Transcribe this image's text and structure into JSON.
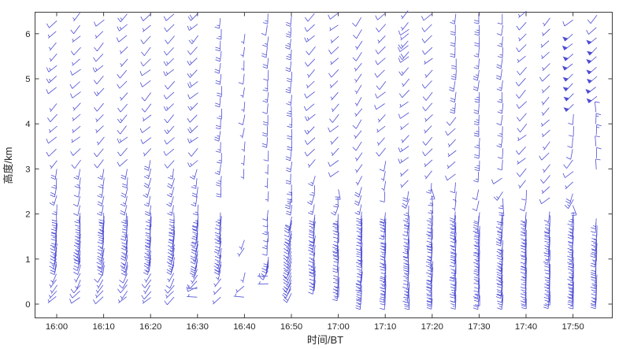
{
  "figure": {
    "background": "#ffffff"
  },
  "axes": {
    "frame_color": "#3c3c3c",
    "tick_color": "#3c3c3c",
    "tick_label_color": "#262626",
    "axis_title_color": "#262626",
    "x_tick_labels": [
      "16:00",
      "16:10",
      "16:20",
      "16:30",
      "16:40",
      "16:50",
      "17:00",
      "17:10",
      "17:20",
      "17:30",
      "17:40",
      "17:50"
    ],
    "y_tick_labels": [
      "0",
      "1",
      "2",
      "3",
      "4",
      "5",
      "6"
    ]
  },
  "chart_data": {
    "type": "scatter",
    "subtype": "wind-barb-time-height-profile",
    "title": "",
    "xlabel": "时间/BT",
    "ylabel": "高度/km",
    "x_unit": "time (BT)",
    "y_unit": "km",
    "time_start": "16:00",
    "time_end": "17:55",
    "x_tick_interval_minutes": 10,
    "column_interval_minutes": 5,
    "xlim_minutes_from_start": [
      -4.6,
      118.4
    ],
    "ylim": [
      -0.3,
      6.5
    ],
    "y_ticks_km": [
      0,
      1,
      2,
      3,
      4,
      5,
      6
    ],
    "grid": "off",
    "legend": "none",
    "barb_color": "#4444d2",
    "speed_units": "kt",
    "barb_convention": "staff points upwind from station; half barb = 5 kt, full barb = 10 kt, pennant = 50 kt",
    "presets": {
      "low": {
        "h0": 0.16,
        "h1": 0.8,
        "step": 0.13,
        "dir": 228,
        "dir2": 198,
        "djit": 8,
        "s0": 5,
        "s1": 10
      },
      "comb": {
        "h0": 0.87,
        "h1": 2.06,
        "step": 0.077,
        "dir": 193,
        "dir2": 181,
        "djit": 4,
        "s0": 10,
        "s1": 20
      },
      "combF": {
        "h0": 0.12,
        "h1": 2.06,
        "step": 0.077,
        "dir": 183,
        "djit": 3,
        "s0": 10,
        "s1": 20
      },
      "trans": {
        "h0": 2.2,
        "h1": 3.0,
        "step": 0.2,
        "dir": 190,
        "djit": 8,
        "s0": 15,
        "s1": 20
      },
      "check": {
        "h0": 3.2,
        "h1": 6.5,
        "step": 0.25,
        "dir": 226,
        "djit": 10,
        "s0": 5,
        "s1": 10
      },
      "vert": {
        "h0": 2.7,
        "h1": 6.5,
        "step": 0.25,
        "dir": 184,
        "djit": 5,
        "s0": 15,
        "s1": 25
      },
      "lhook": {
        "h0": 3.0,
        "h1": 6.0,
        "step": 0.3,
        "dir": 187,
        "djit": 6,
        "s0": 5,
        "s1": 10
      },
      "flag": {
        "h0": 4.45,
        "h1": 6.1,
        "step": 0.22,
        "dir": 228,
        "djit": 6,
        "s0": 50,
        "s1": 50
      },
      "dash": {
        "h0": 0.16,
        "h1": 0.34,
        "step": 0.18,
        "dir": 272,
        "djit": 5,
        "s0": 5,
        "s1": 5
      }
    },
    "columns": [
      {
        "t": "16:00",
        "m": 0,
        "bands": [
          {
            "p": "low"
          },
          {
            "p": "comb"
          },
          {
            "p": "trans"
          },
          {
            "p": "check",
            "h1": 4.6
          },
          {
            "p": "check",
            "h0": 4.8,
            "h1": 5.3,
            "s0": 10,
            "s1": 20
          },
          {
            "p": "check",
            "h0": 5.55
          }
        ]
      },
      {
        "t": "16:05",
        "m": 5,
        "bands": [
          {
            "p": "low"
          },
          {
            "p": "comb"
          },
          {
            "p": "trans",
            "s0": 10,
            "s1": 15
          },
          {
            "p": "check"
          }
        ]
      },
      {
        "t": "16:10",
        "m": 10,
        "bands": [
          {
            "p": "low"
          },
          {
            "p": "comb"
          },
          {
            "p": "trans"
          },
          {
            "p": "check",
            "h1": 4.6
          },
          {
            "p": "check",
            "h0": 4.8,
            "h1": 5.3,
            "s0": 10,
            "s1": 20
          },
          {
            "p": "check",
            "h0": 5.55
          }
        ]
      },
      {
        "t": "16:15",
        "m": 15,
        "bands": [
          {
            "p": "low"
          },
          {
            "p": "comb"
          },
          {
            "p": "trans"
          },
          {
            "p": "check",
            "s1": 15
          }
        ]
      },
      {
        "t": "16:20",
        "m": 20,
        "bands": [
          {
            "p": "low"
          },
          {
            "p": "comb"
          },
          {
            "p": "trans",
            "h1": 3.2
          },
          {
            "p": "check",
            "h0": 3.45
          }
        ]
      },
      {
        "t": "16:25",
        "m": 25,
        "bands": [
          {
            "p": "low"
          },
          {
            "p": "comb",
            "dir": 196
          },
          {
            "p": "trans"
          },
          {
            "p": "check",
            "s0": 10,
            "s1": 15
          }
        ]
      },
      {
        "t": "16:30",
        "m": 30,
        "bands": [
          {
            "p": "dash"
          },
          {
            "p": "low",
            "h0": 0.38,
            "dir": 240
          },
          {
            "p": "comb",
            "dir": 197
          },
          {
            "p": "trans"
          },
          {
            "p": "check",
            "s0": 10,
            "s1": 20
          }
        ]
      },
      {
        "t": "16:35",
        "m": 35,
        "bands": [
          {
            "p": "low",
            "step": 0.2,
            "dir": 235
          },
          {
            "p": "comb"
          },
          {
            "p": "vert",
            "h0": 2.6
          }
        ]
      },
      {
        "t": "16:40",
        "m": 40,
        "bands": [
          {
            "p": "dash",
            "h1": 0.2
          },
          {
            "p": "low",
            "h0": 0.4,
            "h1": 0.72,
            "step": 0.3,
            "s1": 5
          },
          {
            "p": "check",
            "h0": 1.25,
            "h1": 1.42,
            "step": 0.17,
            "dir": 205,
            "s1": 5
          },
          {
            "p": "lhook",
            "h1": 6.2
          }
        ]
      },
      {
        "t": "16:45",
        "m": 45,
        "bands": [
          {
            "p": "dash",
            "h0": 0.45,
            "h1": 0.62,
            "step": 0.16
          },
          {
            "p": "comb",
            "h0": 0.75,
            "h1": 1.1,
            "dir": 206
          },
          {
            "p": "vert",
            "h0": 1.3,
            "h1": 2.1,
            "step": 0.16,
            "s0": 10,
            "s1": 15
          },
          {
            "p": "lhook",
            "h0": 2.5,
            "h1": 3.4
          },
          {
            "p": "vert",
            "h0": 3.7,
            "s0": 10,
            "s1": 20
          }
        ]
      },
      {
        "t": "16:50",
        "m": 50,
        "bands": [
          {
            "p": "combF",
            "h0": 0.25,
            "h1": 2.0,
            "dir": 206,
            "dir2": 194,
            "djit": 5
          },
          {
            "p": "vert",
            "h0": 2.2,
            "h1": 2.65,
            "step": 0.15
          },
          {
            "p": "vert",
            "h0": 2.9
          }
        ]
      },
      {
        "t": "16:55",
        "m": 55,
        "bands": [
          {
            "p": "combF",
            "h0": 0.45,
            "dir": 187
          },
          {
            "p": "trans",
            "step": 0.22
          },
          {
            "p": "check",
            "s1": 15
          }
        ]
      },
      {
        "t": "17:00",
        "m": 60,
        "bands": [
          {
            "p": "combF",
            "h0": 0.3
          },
          {
            "p": "trans",
            "h1": 2.7,
            "djit": 28,
            "s0": 10,
            "step": 0.17
          },
          {
            "p": "check",
            "h0": 2.95
          }
        ]
      },
      {
        "t": "17:05",
        "m": 65,
        "bands": [
          {
            "p": "combF",
            "h0": 0.5
          },
          {
            "p": "combF",
            "h1": 0.42,
            "step": 0.1,
            "s0": 25,
            "s1": 30
          },
          {
            "p": "trans",
            "h1": 2.6
          },
          {
            "p": "check",
            "h0": 2.85,
            "dir": 215
          }
        ]
      },
      {
        "t": "17:10",
        "m": 70,
        "bands": [
          {
            "p": "combF"
          },
          {
            "p": "lhook",
            "h0": 2.5,
            "h1": 3.2,
            "step": 0.23
          },
          {
            "p": "check",
            "h0": 3.45
          }
        ]
      },
      {
        "t": "17:15",
        "m": 75,
        "bands": [
          {
            "p": "combF"
          },
          {
            "p": "trans",
            "h1": 2.5,
            "step": 0.15,
            "djit": 25
          },
          {
            "p": "check",
            "h0": 2.75,
            "s1": 15
          },
          {
            "p": "check",
            "h0": 5.6,
            "h1": 6.2,
            "s0": 10,
            "s1": 20
          }
        ]
      },
      {
        "t": "17:20",
        "m": 80,
        "bands": [
          {
            "p": "combF"
          },
          {
            "p": "trans",
            "h0": 2.25,
            "h1": 2.7,
            "djit": 30,
            "s0": 10,
            "step": 0.15
          },
          {
            "p": "check",
            "h0": 2.95,
            "s1": 15
          }
        ]
      },
      {
        "t": "17:25",
        "m": 85,
        "bands": [
          {
            "p": "combF"
          },
          {
            "p": "lhook",
            "h0": 2.3,
            "h1": 2.7,
            "step": 0.2
          },
          {
            "p": "check",
            "h0": 2.9,
            "h1": 4.2
          },
          {
            "p": "vert",
            "h0": 4.45
          }
        ]
      },
      {
        "t": "17:30",
        "m": 90,
        "bands": [
          {
            "p": "combF"
          },
          {
            "p": "lhook",
            "h0": 2.3,
            "h1": 2.6,
            "step": 0.25
          },
          {
            "p": "vert",
            "h0": 2.95
          }
        ]
      },
      {
        "t": "17:35",
        "m": 95,
        "bands": [
          {
            "p": "combF",
            "dir": 186
          },
          {
            "p": "trans",
            "h1": 2.6,
            "djit": 30,
            "step": 0.15
          },
          {
            "p": "check",
            "h0": 2.8,
            "h1": 3.0
          },
          {
            "p": "vert",
            "h0": 3.2,
            "s0": 10,
            "s1": 20
          }
        ]
      },
      {
        "t": "17:40",
        "m": 100,
        "bands": [
          {
            "p": "combF"
          },
          {
            "p": "lhook",
            "h0": 2.3,
            "h1": 2.55,
            "step": 0.22
          },
          {
            "p": "check",
            "h0": 2.75
          }
        ]
      },
      {
        "t": "17:45",
        "m": 105,
        "bands": [
          {
            "p": "combF"
          },
          {
            "p": "check",
            "h0": 2.35
          }
        ]
      },
      {
        "t": "17:50",
        "m": 110,
        "bands": [
          {
            "p": "combF"
          },
          {
            "p": "trans",
            "h1": 2.45,
            "djit": 32,
            "step": 0.12
          },
          {
            "p": "check",
            "h0": 2.7,
            "h1": 3.25
          },
          {
            "p": "lhook",
            "h0": 3.45,
            "h1": 4.25,
            "step": 0.25,
            "s0": 10,
            "s1": 10
          },
          {
            "p": "flag",
            "h1": 6.15
          },
          {
            "p": "check",
            "h0": 6.3,
            "s0": 10,
            "s1": 10
          }
        ]
      },
      {
        "t": "17:55",
        "m": 115,
        "bands": [
          {
            "p": "combF",
            "h1": 1.95
          },
          {
            "p": "vert",
            "h0": 3.0,
            "h1": 4.4,
            "dir": 358,
            "s0": 10,
            "s1": 15
          },
          {
            "p": "flag",
            "h0": 4.6,
            "h1": 6.0
          },
          {
            "p": "check",
            "h0": 6.15,
            "s0": 10,
            "s1": 10
          }
        ]
      }
    ]
  }
}
